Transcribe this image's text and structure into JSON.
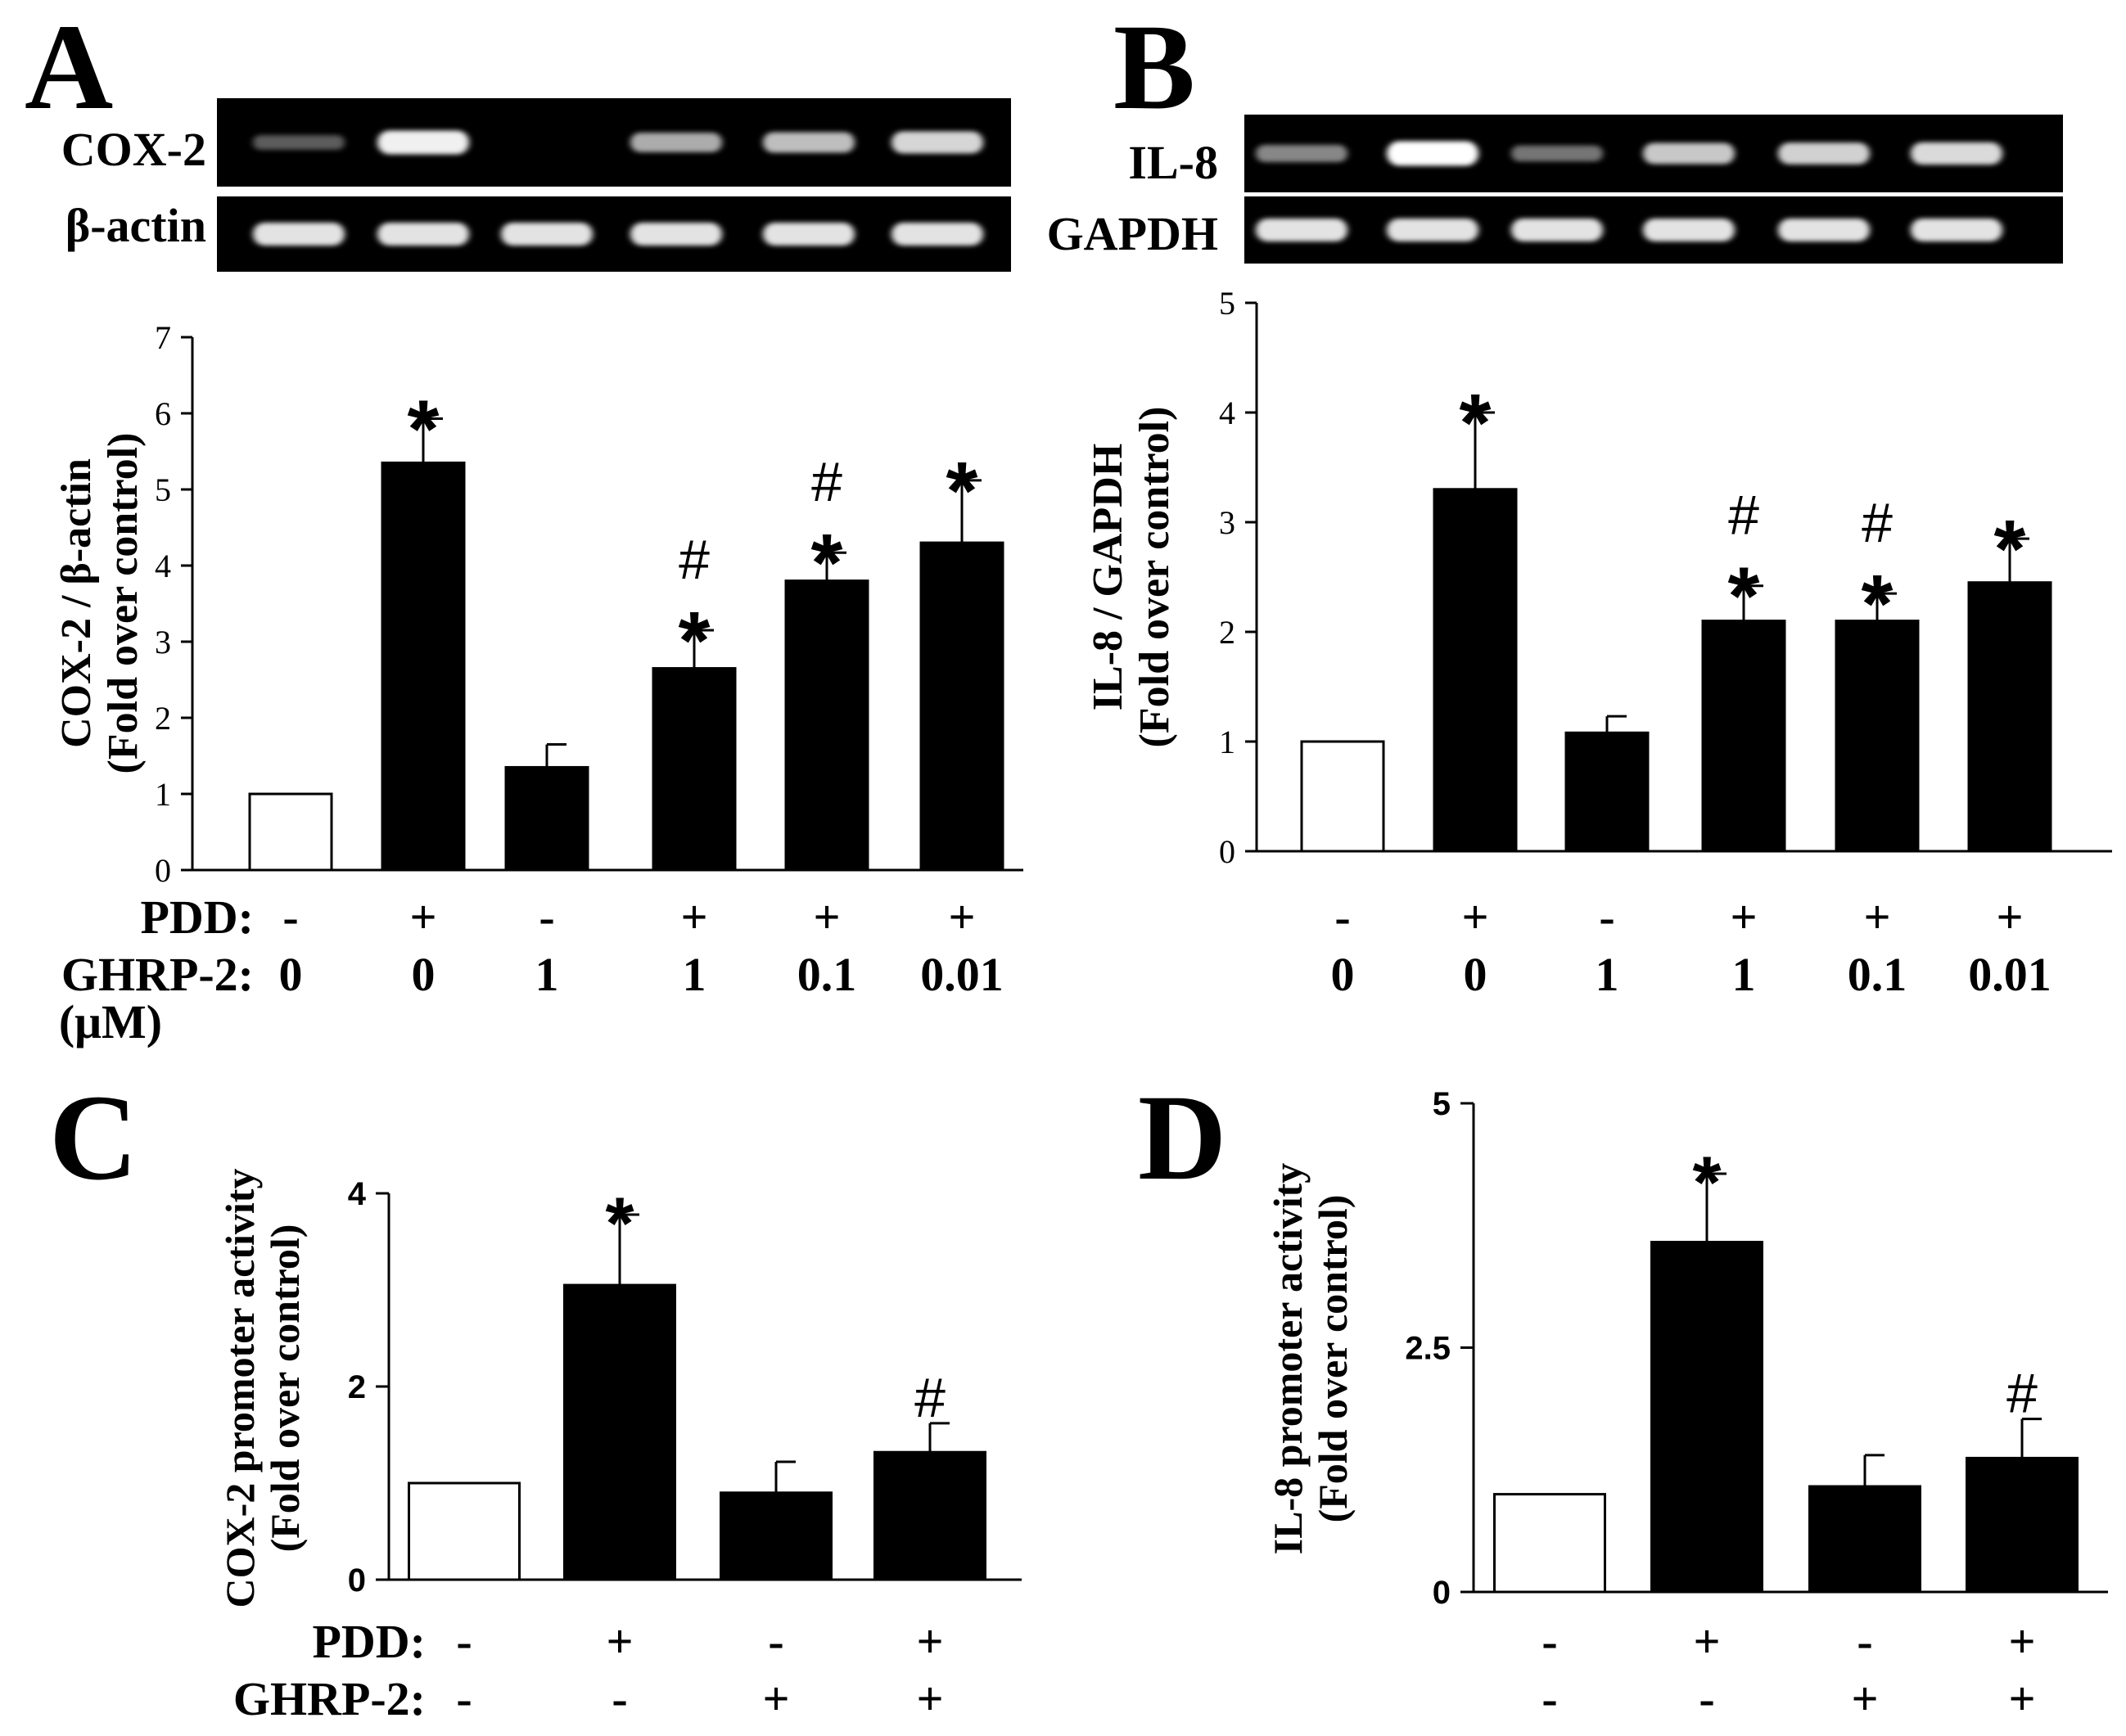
{
  "panels": {
    "A": {
      "letter": "A",
      "gel_rows": [
        {
          "label": "COX-2",
          "intensities": [
            0.12,
            0.92,
            0.0,
            0.55,
            0.65,
            0.78
          ]
        },
        {
          "label": "β-actin",
          "intensities": [
            0.85,
            0.85,
            0.85,
            0.85,
            0.85,
            0.85
          ]
        }
      ],
      "row_labels": [
        {
          "label": "PDD:",
          "values": [
            "-",
            "+",
            "-",
            "+",
            "+",
            "+"
          ]
        },
        {
          "label": "GHRP-2:",
          "values": [
            "0",
            "0",
            "1",
            "1",
            "0.1",
            "0.01"
          ]
        }
      ],
      "unit_label": "(μM)"
    },
    "B": {
      "letter": "B",
      "gel_rows": [
        {
          "label": "IL-8",
          "intensities": [
            0.35,
            1.0,
            0.25,
            0.7,
            0.75,
            0.8
          ]
        },
        {
          "label": "GAPDH",
          "intensities": [
            0.85,
            0.85,
            0.85,
            0.85,
            0.85,
            0.85
          ]
        }
      ],
      "row_labels": [
        {
          "label": "",
          "values": [
            "-",
            "+",
            "-",
            "+",
            "+",
            "+"
          ]
        },
        {
          "label": "",
          "values": [
            "0",
            "0",
            "1",
            "1",
            "0.1",
            "0.01"
          ]
        }
      ]
    },
    "C": {
      "letter": "C",
      "row_labels": [
        {
          "label": "PDD:",
          "values": [
            "-",
            "+",
            "-",
            "+"
          ]
        },
        {
          "label": "GHRP-2:",
          "values": [
            "-",
            "-",
            "+",
            "+"
          ]
        }
      ]
    },
    "D": {
      "letter": "D",
      "row_labels": [
        {
          "label": "",
          "values": [
            "-",
            "+",
            "-",
            "+"
          ]
        },
        {
          "label": "",
          "values": [
            "-",
            "-",
            "+",
            "+"
          ]
        }
      ]
    }
  },
  "chart_data": [
    {
      "panel": "A",
      "type": "bar",
      "ylabel_line1": "COX-2 / β-actin",
      "ylabel_line2": "(Fold over control)",
      "ylim": [
        0,
        7
      ],
      "yticks": [
        "0",
        "1",
        "2",
        "3",
        "4",
        "5",
        "6",
        "7"
      ],
      "values": [
        1.0,
        5.35,
        1.35,
        2.65,
        3.8,
        4.3
      ],
      "errors": [
        0,
        0.58,
        0.3,
        0.5,
        0.37,
        0.82
      ],
      "fills": [
        "white",
        "black",
        "black",
        "black",
        "black",
        "black"
      ],
      "annotations": [
        [],
        [
          "*"
        ],
        [],
        [
          "*",
          "#"
        ],
        [
          "*",
          "#"
        ],
        [
          "*"
        ]
      ]
    },
    {
      "panel": "B",
      "type": "bar",
      "ylabel_line1": "IL-8 / GAPDH",
      "ylabel_line2": "(Fold over control)",
      "ylim": [
        0,
        5
      ],
      "yticks": [
        "0",
        "1",
        "2",
        "3",
        "4",
        "5"
      ],
      "values": [
        1.0,
        3.3,
        1.08,
        2.1,
        2.1,
        2.45
      ],
      "errors": [
        0,
        0.7,
        0.15,
        0.32,
        0.25,
        0.4
      ],
      "fills": [
        "white",
        "black",
        "black",
        "black",
        "black",
        "black"
      ],
      "annotations": [
        [],
        [
          "*"
        ],
        [],
        [
          "*",
          "#"
        ],
        [
          "*",
          "#"
        ],
        [
          "*"
        ]
      ]
    },
    {
      "panel": "C",
      "type": "bar",
      "ylabel_line1": "COX-2 promoter activity",
      "ylabel_line2": "(Fold over control)",
      "ylim": [
        0,
        4
      ],
      "yticks": [
        "0",
        "2",
        "4"
      ],
      "values": [
        1.0,
        3.05,
        0.9,
        1.32
      ],
      "errors": [
        0,
        0.73,
        0.32,
        0.3
      ],
      "fills": [
        "white",
        "black",
        "black",
        "black"
      ],
      "annotations": [
        [],
        [
          "*"
        ],
        [],
        [
          "#"
        ]
      ]
    },
    {
      "panel": "D",
      "type": "bar",
      "ylabel_line1": "IL-8 promoter activity",
      "ylabel_line2": "(Fold over control)",
      "ylim": [
        0,
        5
      ],
      "yticks": [
        "0",
        "2.5",
        "5"
      ],
      "values": [
        1.0,
        3.58,
        1.08,
        1.37
      ],
      "errors": [
        0,
        0.7,
        0.32,
        0.4
      ],
      "fills": [
        "white",
        "black",
        "black",
        "black"
      ],
      "annotations": [
        [],
        [
          "*"
        ],
        [],
        [
          "#"
        ]
      ]
    }
  ]
}
